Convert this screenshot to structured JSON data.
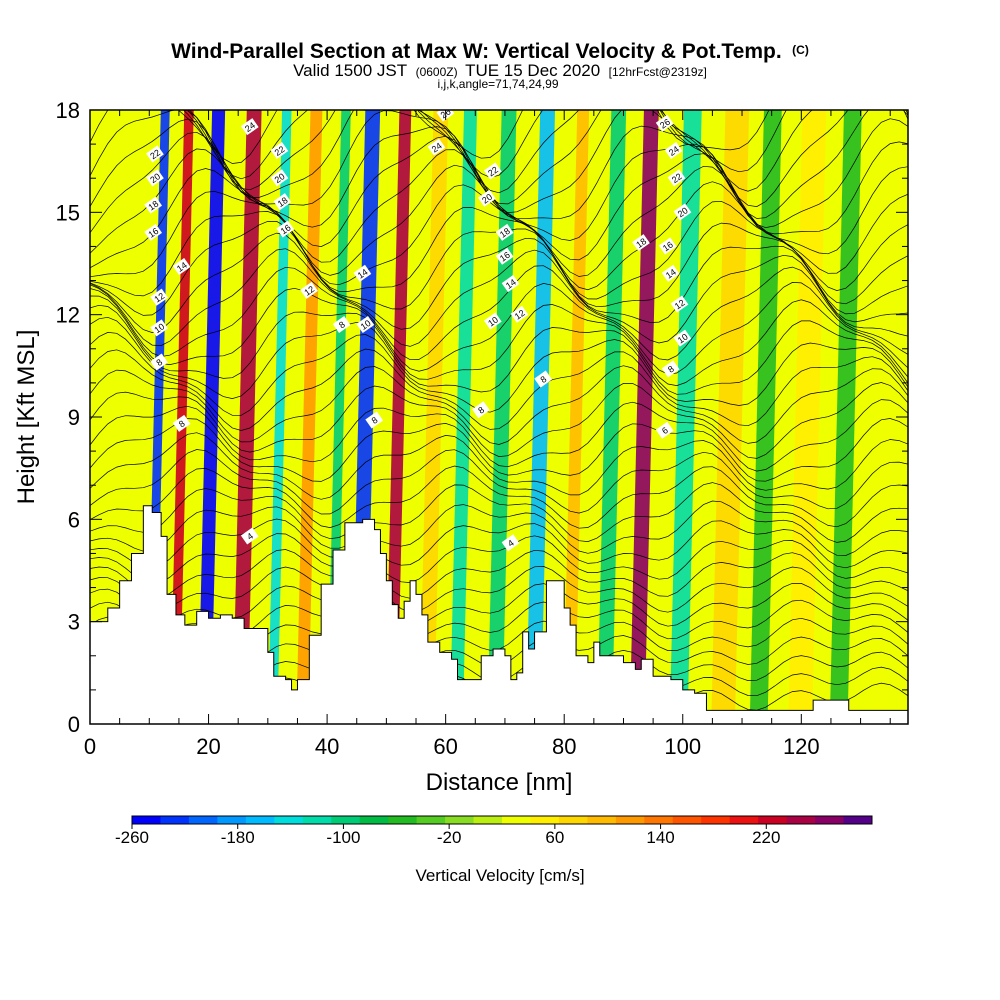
{
  "chart_data": {
    "type": "heatmap",
    "title": "Wind-Parallel Section at Max W: Vertical Velocity & Pot.Temp.",
    "title_unit": "(C)",
    "subtitle_prefix": "Valid 1500 JST",
    "subtitle_zulu": "(0600Z)",
    "subtitle_date": "TUE 15 Dec 2020",
    "subtitle_fcst": "[12hrFcst@2319z]",
    "info_line": "i,j,k,angle=71,74,24,99",
    "xlabel": "Distance [nm]",
    "ylabel": "Height [Kft MSL]",
    "xlim": [
      0,
      138
    ],
    "ylim": [
      0,
      18
    ],
    "x_ticks": [
      "0",
      "20",
      "40",
      "60",
      "80",
      "100",
      "120"
    ],
    "y_ticks": [
      "0",
      "3",
      "6",
      "9",
      "12",
      "15",
      "18"
    ],
    "colorbar": {
      "label": "Vertical Velocity [cm/s]",
      "range": [
        -260,
        300
      ],
      "tick_labels": [
        "-260",
        "-180",
        "-100",
        "-20",
        "60",
        "140",
        "220"
      ],
      "colors": [
        "#0000ff",
        "#0033ff",
        "#0066ff",
        "#0099ff",
        "#00bbff",
        "#00dddd",
        "#00ddaa",
        "#00cc77",
        "#00bb44",
        "#22bb22",
        "#55cc22",
        "#88dd22",
        "#bbee11",
        "#eeff00",
        "#ffee00",
        "#ffd700",
        "#ffbb00",
        "#ff9900",
        "#ff7700",
        "#ff5500",
        "#ff3300",
        "#ee1111",
        "#cc0022",
        "#aa0044",
        "#880066",
        "#550088"
      ]
    },
    "bands": [
      {
        "x": 11.5,
        "w": 1.5,
        "v": -230
      },
      {
        "x": 15.5,
        "w": 1.6,
        "v": 230
      },
      {
        "x": 20.5,
        "w": 2.2,
        "v": -240
      },
      {
        "x": 26.5,
        "w": 2.5,
        "v": 240
      },
      {
        "x": 32.0,
        "w": 1.6,
        "v": -140
      },
      {
        "x": 37.0,
        "w": 2.0,
        "v": 110
      },
      {
        "x": 42.0,
        "w": 1.6,
        "v": -90
      },
      {
        "x": 46.5,
        "w": 2.5,
        "v": -230
      },
      {
        "x": 52.0,
        "w": 2.0,
        "v": 250
      },
      {
        "x": 58.0,
        "w": 2.5,
        "v": 70
      },
      {
        "x": 63.0,
        "w": 2.2,
        "v": -110
      },
      {
        "x": 69.5,
        "w": 2.5,
        "v": -100
      },
      {
        "x": 76.0,
        "w": 2.5,
        "v": -160
      },
      {
        "x": 82.0,
        "w": 2.0,
        "v": 90
      },
      {
        "x": 88.0,
        "w": 2.5,
        "v": -90
      },
      {
        "x": 93.5,
        "w": 2.5,
        "v": 260
      },
      {
        "x": 100.5,
        "w": 3.0,
        "v": -110
      },
      {
        "x": 108.0,
        "w": 4.0,
        "v": 70
      },
      {
        "x": 114.0,
        "w": 3.0,
        "v": -60
      },
      {
        "x": 121.0,
        "w": 4.0,
        "v": 50
      },
      {
        "x": 127.5,
        "w": 3.0,
        "v": -60
      },
      {
        "x": 134.0,
        "w": 3.5,
        "v": 40
      }
    ],
    "terrain": [
      [
        0,
        3.0
      ],
      [
        3,
        3.4
      ],
      [
        5,
        4.2
      ],
      [
        7,
        5.0
      ],
      [
        9,
        6.4
      ],
      [
        10.5,
        6.2
      ],
      [
        12,
        5.5
      ],
      [
        13,
        3.8
      ],
      [
        14.5,
        3.2
      ],
      [
        16,
        2.9
      ],
      [
        17,
        2.9
      ],
      [
        18,
        3.3
      ],
      [
        20,
        3.1
      ],
      [
        22,
        3.2
      ],
      [
        24,
        3.1
      ],
      [
        26,
        2.8
      ],
      [
        28,
        2.8
      ],
      [
        30,
        2.1
      ],
      [
        31,
        1.4
      ],
      [
        33,
        1.3
      ],
      [
        34,
        1.0
      ],
      [
        35,
        1.3
      ],
      [
        37,
        2.6
      ],
      [
        39,
        4.1
      ],
      [
        41,
        5.1
      ],
      [
        43,
        5.9
      ],
      [
        46,
        6.0
      ],
      [
        48,
        5.7
      ],
      [
        49,
        5.0
      ],
      [
        50,
        4.2
      ],
      [
        51,
        3.5
      ],
      [
        52,
        3.1
      ],
      [
        53,
        3.6
      ],
      [
        54,
        4.2
      ],
      [
        55,
        3.8
      ],
      [
        56,
        3.2
      ],
      [
        57,
        2.4
      ],
      [
        59,
        2.1
      ],
      [
        61,
        1.9
      ],
      [
        62,
        1.3
      ],
      [
        64,
        1.3
      ],
      [
        66,
        2.0
      ],
      [
        68,
        2.2
      ],
      [
        70,
        2.0
      ],
      [
        71,
        1.3
      ],
      [
        72,
        1.5
      ],
      [
        73,
        2.7
      ],
      [
        74,
        2.2
      ],
      [
        75,
        2.7
      ],
      [
        77,
        4.2
      ],
      [
        79,
        4.2
      ],
      [
        80,
        3.4
      ],
      [
        81,
        2.9
      ],
      [
        82,
        2.0
      ],
      [
        84,
        1.8
      ],
      [
        85,
        2.4
      ],
      [
        86,
        2.0
      ],
      [
        88,
        2.0
      ],
      [
        90,
        1.8
      ],
      [
        92,
        1.6
      ],
      [
        93,
        1.9
      ],
      [
        95,
        1.4
      ],
      [
        98,
        1.3
      ],
      [
        100,
        1.0
      ],
      [
        102,
        0.9
      ],
      [
        104,
        0.4
      ],
      [
        106,
        0.4
      ],
      [
        110,
        0.4
      ],
      [
        116,
        0.4
      ],
      [
        120,
        0.4
      ],
      [
        122,
        0.7
      ],
      [
        126,
        0.7
      ],
      [
        128,
        0.4
      ],
      [
        134,
        0.4
      ],
      [
        138,
        0.4
      ]
    ],
    "contour_labels": [
      {
        "x": 11,
        "y": 16.7,
        "t": "22"
      },
      {
        "x": 11,
        "y": 16.0,
        "t": "20"
      },
      {
        "x": 10.7,
        "y": 15.2,
        "t": "18"
      },
      {
        "x": 10.7,
        "y": 14.4,
        "t": "16"
      },
      {
        "x": 15.5,
        "y": 13.4,
        "t": "14"
      },
      {
        "x": 11.7,
        "y": 12.5,
        "t": "12"
      },
      {
        "x": 11.7,
        "y": 11.6,
        "t": "10"
      },
      {
        "x": 11.7,
        "y": 10.6,
        "t": "8"
      },
      {
        "x": 15.5,
        "y": 8.8,
        "t": "8"
      },
      {
        "x": 27,
        "y": 17.5,
        "t": "24"
      },
      {
        "x": 32,
        "y": 16.8,
        "t": "22"
      },
      {
        "x": 32,
        "y": 16.0,
        "t": "20"
      },
      {
        "x": 32.5,
        "y": 15.3,
        "t": "18"
      },
      {
        "x": 33,
        "y": 14.5,
        "t": "16"
      },
      {
        "x": 37,
        "y": 12.7,
        "t": "12"
      },
      {
        "x": 42.5,
        "y": 11.7,
        "t": "8"
      },
      {
        "x": 46,
        "y": 13.2,
        "t": "14"
      },
      {
        "x": 46.5,
        "y": 11.7,
        "t": "10"
      },
      {
        "x": 48,
        "y": 8.9,
        "t": "8"
      },
      {
        "x": 60,
        "y": 17.9,
        "t": "26"
      },
      {
        "x": 58.5,
        "y": 16.9,
        "t": "24"
      },
      {
        "x": 68,
        "y": 16.2,
        "t": "22"
      },
      {
        "x": 67,
        "y": 15.4,
        "t": "20"
      },
      {
        "x": 70,
        "y": 14.4,
        "t": "18"
      },
      {
        "x": 70,
        "y": 13.7,
        "t": "16"
      },
      {
        "x": 71,
        "y": 12.9,
        "t": "14"
      },
      {
        "x": 72.5,
        "y": 12.0,
        "t": "12"
      },
      {
        "x": 68,
        "y": 11.8,
        "t": "10"
      },
      {
        "x": 76.5,
        "y": 10.1,
        "t": "8"
      },
      {
        "x": 66,
        "y": 9.2,
        "t": "8"
      },
      {
        "x": 27,
        "y": 5.5,
        "t": "4"
      },
      {
        "x": 71,
        "y": 5.3,
        "t": "4"
      },
      {
        "x": 97,
        "y": 17.6,
        "t": "26"
      },
      {
        "x": 98.5,
        "y": 16.8,
        "t": "24"
      },
      {
        "x": 99,
        "y": 16.0,
        "t": "22"
      },
      {
        "x": 100,
        "y": 15.0,
        "t": "20"
      },
      {
        "x": 93,
        "y": 14.1,
        "t": "18"
      },
      {
        "x": 97.5,
        "y": 14.0,
        "t": "16"
      },
      {
        "x": 98,
        "y": 13.2,
        "t": "14"
      },
      {
        "x": 99.5,
        "y": 12.3,
        "t": "12"
      },
      {
        "x": 100,
        "y": 11.3,
        "t": "10"
      },
      {
        "x": 98,
        "y": 10.4,
        "t": "8"
      },
      {
        "x": 97,
        "y": 8.6,
        "t": "6"
      }
    ]
  }
}
